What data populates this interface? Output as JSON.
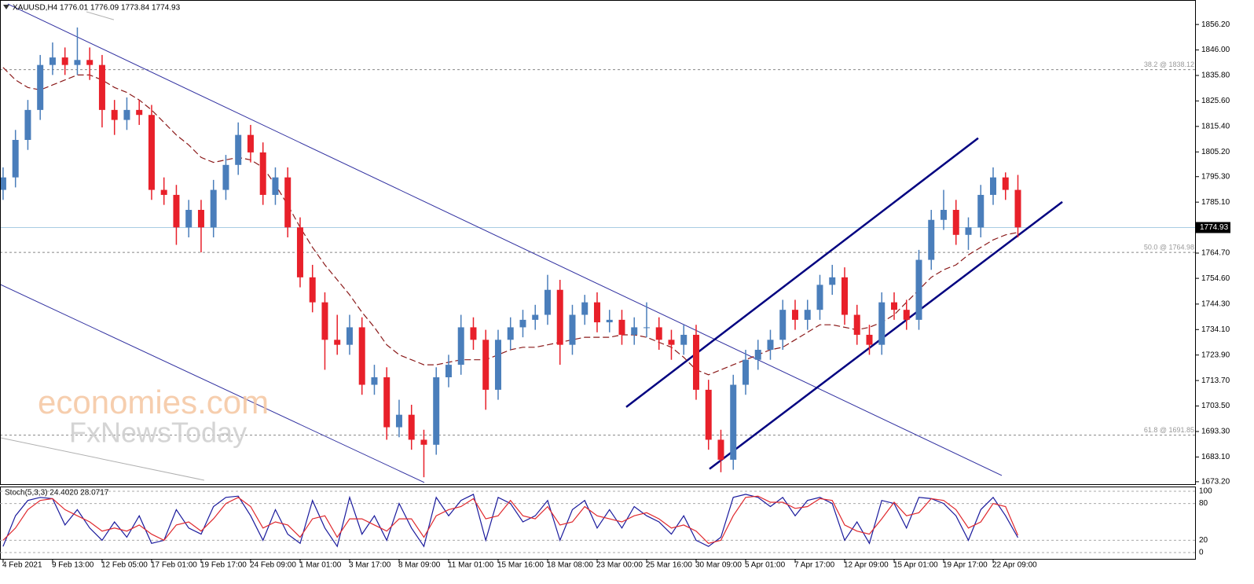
{
  "chart_data": [
    {
      "type": "candlestick",
      "header": {
        "symbol": "XAUUSD,H4",
        "ohlc": [
          1776.01,
          1776.09,
          1773.84,
          1774.93
        ]
      },
      "watermark": [
        "economies.com",
        "FxNewsToday"
      ],
      "xlim": [
        -0.25,
        96.38
      ],
      "xticks": [
        {
          "value": 0,
          "label": "4 Feb 2021"
        },
        {
          "value": 4,
          "label": "9 Feb 13:00"
        },
        {
          "value": 8,
          "label": "12 Feb 05:00"
        },
        {
          "value": 12,
          "label": "17 Feb 01:00"
        },
        {
          "value": 16,
          "label": "19 Feb 17:00"
        },
        {
          "value": 20,
          "label": "24 Feb 09:00"
        },
        {
          "value": 24,
          "label": "1 Mar 01:00"
        },
        {
          "value": 28,
          "label": "3 Mar 17:00"
        },
        {
          "value": 32,
          "label": "8 Mar 09:00"
        },
        {
          "value": 36,
          "label": "11 Mar 01:00"
        },
        {
          "value": 40,
          "label": "15 Mar 16:00"
        },
        {
          "value": 44,
          "label": "18 Mar 08:00"
        },
        {
          "value": 48,
          "label": "23 Mar 00:00"
        },
        {
          "value": 52,
          "label": "25 Mar 16:00"
        },
        {
          "value": 56,
          "label": "30 Mar 09:00"
        },
        {
          "value": 60,
          "label": "5 Apr 01:00"
        },
        {
          "value": 64,
          "label": "7 Apr 17:00"
        },
        {
          "value": 68,
          "label": "12 Apr 09:00"
        },
        {
          "value": 72,
          "label": "15 Apr 01:00"
        },
        {
          "value": 76,
          "label": "19 Apr 17:00"
        },
        {
          "value": 80,
          "label": "22 Apr 09:00"
        }
      ],
      "ylim": [
        1671.9,
        1866
      ],
      "yticks": [
        {
          "value": 1856.2,
          "label": "1856.20"
        },
        {
          "value": 1846,
          "label": "1846.00"
        },
        {
          "value": 1835.8,
          "label": "1835.80"
        },
        {
          "value": 1825.6,
          "label": "1825.60"
        },
        {
          "value": 1815.4,
          "label": "1815.40"
        },
        {
          "value": 1805.2,
          "label": "1805.20"
        },
        {
          "value": 1795.3,
          "label": "1795.30"
        },
        {
          "value": 1785.1,
          "label": "1785.10"
        },
        {
          "value": 1764.7,
          "label": "1764.70"
        },
        {
          "value": 1754.6,
          "label": "1754.60"
        },
        {
          "value": 1744.3,
          "label": "1744.30"
        },
        {
          "value": 1734.1,
          "label": "1734.10"
        },
        {
          "value": 1723.9,
          "label": "1723.90"
        },
        {
          "value": 1713.7,
          "label": "1713.70"
        },
        {
          "value": 1703.5,
          "label": "1703.50"
        },
        {
          "value": 1693.3,
          "label": "1693.30"
        },
        {
          "value": 1683.1,
          "label": "1683.10"
        },
        {
          "value": 1673.2,
          "label": "1673.20"
        }
      ],
      "up_color": "#4a7ebb",
      "down_color": "#e8202a",
      "candles": [
        [
          1790,
          1799,
          1786,
          1795
        ],
        [
          1795,
          1814,
          1791,
          1810
        ],
        [
          1810,
          1826,
          1806,
          1822
        ],
        [
          1822,
          1844,
          1818,
          1840
        ],
        [
          1840,
          1849,
          1836,
          1843
        ],
        [
          1843,
          1847,
          1836,
          1840
        ],
        [
          1840,
          1855,
          1836,
          1842
        ],
        [
          1842,
          1847,
          1834,
          1840
        ],
        [
          1840,
          1844,
          1815,
          1822
        ],
        [
          1822,
          1826,
          1812,
          1818
        ],
        [
          1818,
          1827,
          1814,
          1822
        ],
        [
          1822,
          1826,
          1816,
          1820
        ],
        [
          1820,
          1824,
          1786,
          1790
        ],
        [
          1790,
          1795,
          1784,
          1788
        ],
        [
          1788,
          1792,
          1768,
          1775
        ],
        [
          1775,
          1786,
          1771,
          1782
        ],
        [
          1782,
          1786,
          1765,
          1775
        ],
        [
          1775,
          1794,
          1771,
          1790
        ],
        [
          1790,
          1804,
          1786,
          1800
        ],
        [
          1800,
          1817,
          1796,
          1812
        ],
        [
          1812,
          1816,
          1801,
          1805
        ],
        [
          1805,
          1809,
          1784,
          1788
        ],
        [
          1788,
          1799,
          1784,
          1795
        ],
        [
          1795,
          1799,
          1771,
          1775
        ],
        [
          1775,
          1779,
          1751,
          1755
        ],
        [
          1755,
          1760,
          1741,
          1745
        ],
        [
          1745,
          1749,
          1718,
          1730
        ],
        [
          1730,
          1740,
          1724,
          1728
        ],
        [
          1728,
          1740,
          1724,
          1735
        ],
        [
          1735,
          1739,
          1708,
          1712
        ],
        [
          1712,
          1720,
          1708,
          1715
        ],
        [
          1715,
          1719,
          1690,
          1695
        ],
        [
          1695,
          1706,
          1691,
          1700
        ],
        [
          1700,
          1704,
          1686,
          1690
        ],
        [
          1690,
          1694,
          1675,
          1688
        ],
        [
          1688,
          1719,
          1684,
          1715
        ],
        [
          1715,
          1724,
          1711,
          1720
        ],
        [
          1720,
          1740,
          1716,
          1735
        ],
        [
          1735,
          1739,
          1726,
          1730
        ],
        [
          1730,
          1734,
          1702,
          1710
        ],
        [
          1710,
          1734,
          1706,
          1730
        ],
        [
          1730,
          1739,
          1726,
          1735
        ],
        [
          1735,
          1742,
          1731,
          1738
        ],
        [
          1738,
          1744,
          1734,
          1740
        ],
        [
          1740,
          1756,
          1736,
          1750
        ],
        [
          1750,
          1754,
          1720,
          1728
        ],
        [
          1728,
          1744,
          1724,
          1740
        ],
        [
          1740,
          1748,
          1736,
          1745
        ],
        [
          1745,
          1749,
          1733,
          1737
        ],
        [
          1737,
          1742,
          1733,
          1738
        ],
        [
          1738,
          1742,
          1728,
          1732
        ],
        [
          1732,
          1739,
          1728,
          1735
        ],
        [
          1735,
          1745,
          1731,
          1735
        ],
        [
          1735,
          1739,
          1726,
          1730
        ],
        [
          1730,
          1734,
          1722,
          1728
        ],
        [
          1728,
          1736,
          1724,
          1732
        ],
        [
          1732,
          1736,
          1706,
          1710
        ],
        [
          1710,
          1714,
          1686,
          1690
        ],
        [
          1690,
          1694,
          1677,
          1682
        ],
        [
          1682,
          1716,
          1678,
          1712
        ],
        [
          1712,
          1726,
          1708,
          1722
        ],
        [
          1722,
          1730,
          1718,
          1726
        ],
        [
          1726,
          1734,
          1722,
          1730
        ],
        [
          1730,
          1746,
          1726,
          1742
        ],
        [
          1742,
          1746,
          1734,
          1738
        ],
        [
          1738,
          1746,
          1734,
          1742
        ],
        [
          1742,
          1756,
          1738,
          1752
        ],
        [
          1752,
          1760,
          1748,
          1755
        ],
        [
          1755,
          1759,
          1736,
          1740
        ],
        [
          1740,
          1744,
          1728,
          1732
        ],
        [
          1732,
          1736,
          1724,
          1728
        ],
        [
          1728,
          1749,
          1724,
          1745
        ],
        [
          1745,
          1749,
          1738,
          1742
        ],
        [
          1742,
          1746,
          1734,
          1738
        ],
        [
          1738,
          1766,
          1734,
          1762
        ],
        [
          1762,
          1782,
          1758,
          1778
        ],
        [
          1778,
          1790,
          1774,
          1782
        ],
        [
          1782,
          1786,
          1768,
          1772
        ],
        [
          1772,
          1779,
          1766,
          1775
        ],
        [
          1775,
          1792,
          1771,
          1788
        ],
        [
          1788,
          1799,
          1784,
          1795
        ],
        [
          1795,
          1797,
          1786,
          1790
        ],
        [
          1790,
          1796,
          1771,
          1775
        ]
      ],
      "ma": {
        "color": "#8b1a1a",
        "values": [
          1839,
          1834,
          1831,
          1830,
          1832,
          1834,
          1836,
          1836,
          1834,
          1831,
          1829,
          1826,
          1822,
          1817,
          1812,
          1808,
          1803,
          1801,
          1802,
          1803,
          1802,
          1799,
          1792,
          1784,
          1775,
          1767,
          1760,
          1754,
          1748,
          1741,
          1735,
          1728,
          1724,
          1722,
          1720,
          1720,
          1721,
          1722,
          1722,
          1722,
          1724,
          1726,
          1727,
          1727,
          1728,
          1729,
          1730,
          1731,
          1731,
          1731,
          1732,
          1732,
          1731,
          1729,
          1727,
          1723,
          1718,
          1716,
          1718,
          1720,
          1722,
          1724,
          1726,
          1727,
          1730,
          1733,
          1736,
          1736,
          1735,
          1734,
          1735,
          1737,
          1740,
          1745,
          1750,
          1755,
          1758,
          1760,
          1764,
          1767,
          1770,
          1772,
          1773
        ]
      },
      "last_price": 1774.93,
      "levels": [
        {
          "value": 1838.12,
          "label": "38.2 @ 1838.12"
        },
        {
          "value": 1764.98,
          "label": "50.0 @ 1764.98"
        },
        {
          "value": 1691.85,
          "label": "61.8 @ 1691.85"
        }
      ],
      "trendlines": [
        {
          "x": [
            0.38,
            80.7
          ],
          "y": [
            1864.4,
            1675.7
          ],
          "color": "#3030a0"
        },
        {
          "x": [
            -0.25,
            34.03
          ],
          "y": [
            1752.2,
            1672.9
          ],
          "color": "#3030a0"
        },
        {
          "x": [
            50.35,
            78.79
          ],
          "y": [
            1703.1,
            1810.7
          ],
          "color": "#000080"
        },
        {
          "x": [
            57.08,
            85.59
          ],
          "y": [
            1678.3,
            1785.2
          ],
          "color": "#000080"
        },
        {
          "x": [
            -0.25,
            16.25
          ],
          "y": [
            1690.8,
            1673.8
          ],
          "color": "#b0b0b0"
        },
        {
          "x": [
            6.73,
            8.95
          ],
          "y": [
            1861.3,
            1858.1
          ],
          "color": "#b0b0b0"
        }
      ]
    },
    {
      "type": "stochastic",
      "title": "Stoch(5,3,3) 24.4020 28.0717",
      "ylim": [
        -11.5,
        106.4
      ],
      "yticks": [
        100,
        80,
        20,
        0
      ],
      "series": [
        {
          "color": "#1a1a9c",
          "values": [
            10,
            60,
            85,
            90,
            88,
            45,
            70,
            40,
            20,
            50,
            25,
            60,
            15,
            20,
            70,
            40,
            30,
            75,
            90,
            92,
            60,
            20,
            70,
            30,
            15,
            85,
            40,
            10,
            90,
            30,
            60,
            20,
            80,
            40,
            10,
            90,
            60,
            85,
            95,
            20,
            90,
            80,
            50,
            60,
            85,
            20,
            70,
            85,
            40,
            70,
            40,
            75,
            60,
            50,
            30,
            60,
            20,
            10,
            25,
            90,
            95,
            90,
            75,
            90,
            60,
            85,
            90,
            80,
            20,
            50,
            15,
            85,
            80,
            40,
            90,
            88,
            80,
            60,
            20,
            70,
            90,
            60,
            24.402
          ]
        },
        {
          "color": "#e0282d",
          "values": [
            20,
            40,
            70,
            85,
            88,
            70,
            60,
            50,
            35,
            40,
            35,
            45,
            30,
            20,
            45,
            50,
            35,
            55,
            80,
            90,
            75,
            40,
            50,
            45,
            25,
            55,
            60,
            25,
            55,
            55,
            45,
            35,
            55,
            55,
            25,
            60,
            70,
            75,
            88,
            55,
            60,
            85,
            60,
            55,
            75,
            45,
            50,
            75,
            60,
            55,
            50,
            60,
            65,
            55,
            40,
            45,
            35,
            15,
            20,
            60,
            90,
            92,
            82,
            82,
            72,
            75,
            88,
            85,
            45,
            35,
            30,
            55,
            82,
            60,
            65,
            88,
            85,
            70,
            40,
            50,
            80,
            75,
            28.0717
          ]
        }
      ]
    }
  ]
}
